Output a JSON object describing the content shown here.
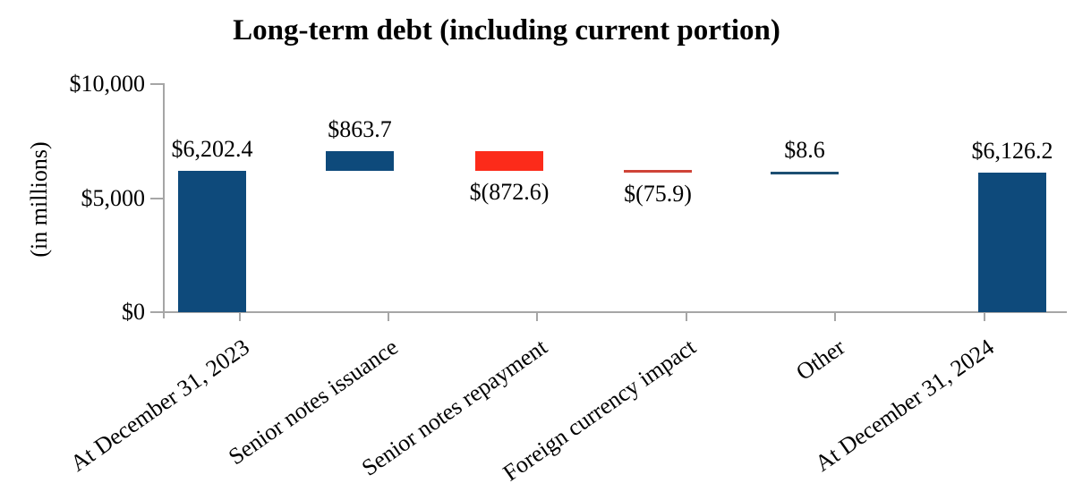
{
  "title": "Long-term debt (including current portion)",
  "chart_data": {
    "type": "bar",
    "subtype": "waterfall",
    "title": "Long-term debt (including current portion)",
    "xlabel": "",
    "ylabel": "(in millions)",
    "ylim": [
      0,
      10000
    ],
    "grid": false,
    "legend": null,
    "yticks": [
      {
        "value": 0,
        "label": "$0"
      },
      {
        "value": 5000,
        "label": "$5,000"
      },
      {
        "value": 10000,
        "label": "$10,000"
      }
    ],
    "categories": [
      "At December 31, 2023",
      "Senior notes issuance",
      "Senior notes repayment",
      "Foreign currency impact",
      "Other",
      "At December 31, 2024"
    ],
    "bars": [
      {
        "category": "At December 31, 2023",
        "label": "$6,202.4",
        "value": 6202.4,
        "start": 0,
        "end": 6202.4,
        "color_key": "blue",
        "label_position": "above"
      },
      {
        "category": "Senior notes issuance",
        "label": "$863.7",
        "value": 863.7,
        "start": 6202.4,
        "end": 7066.1,
        "color_key": "blue",
        "label_position": "above"
      },
      {
        "category": "Senior notes repayment",
        "label": "$(872.6)",
        "value": -872.6,
        "start": 7066.1,
        "end": 6193.5,
        "color_key": "red",
        "label_position": "below"
      },
      {
        "category": "Foreign currency impact",
        "label": "$(75.9)",
        "value": -75.9,
        "start": 6193.5,
        "end": 6117.6,
        "color_key": "red",
        "label_position": "below"
      },
      {
        "category": "Other",
        "label": "$8.6",
        "value": 8.6,
        "start": 6117.6,
        "end": 6126.2,
        "color_key": "blue",
        "label_position": "above"
      },
      {
        "category": "At December 31, 2024",
        "label": "$6,126.2",
        "value": 6126.2,
        "start": 0,
        "end": 6126.2,
        "color_key": "blue",
        "label_position": "above"
      }
    ],
    "colors": {
      "blue": "#0E4A7B",
      "red": "#FC2B1A",
      "thin_blue": "#1D4F72",
      "thin_red": "#CF4438",
      "axis": "#A6A6A6",
      "text": "#000000"
    }
  }
}
